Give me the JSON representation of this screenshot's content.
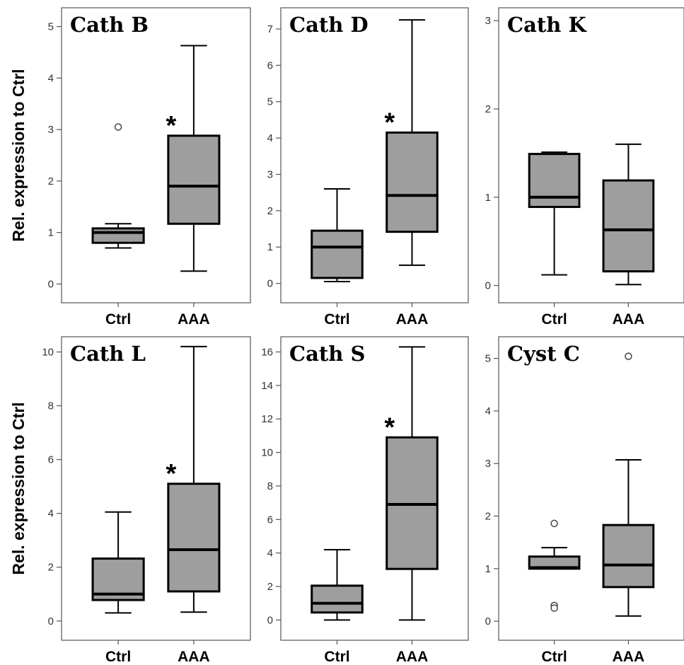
{
  "chart_data": [
    {
      "type": "box",
      "title": "Cath B",
      "ylabel": "Rel. expression to Ctrl",
      "ylim": [
        -0.2,
        5.2
      ],
      "yticks": [
        0,
        1,
        2,
        3,
        4,
        5
      ],
      "categories": [
        "Ctrl",
        "AAA"
      ],
      "boxes": [
        {
          "category": "Ctrl",
          "min": 0.7,
          "q1": 0.8,
          "median": 1.0,
          "q3": 1.08,
          "max": 1.17,
          "outliers": [
            3.05
          ]
        },
        {
          "category": "AAA",
          "min": 0.25,
          "q1": 1.17,
          "median": 1.9,
          "q3": 2.88,
          "max": 4.63,
          "outliers": [],
          "significant": true
        }
      ],
      "annotation": "*"
    },
    {
      "type": "box",
      "title": "Cath D",
      "ylabel": "",
      "ylim": [
        -0.3,
        7.35
      ],
      "yticks": [
        0,
        1,
        2,
        3,
        4,
        5,
        6,
        7
      ],
      "categories": [
        "Ctrl",
        "AAA"
      ],
      "boxes": [
        {
          "category": "Ctrl",
          "min": 0.05,
          "q1": 0.15,
          "median": 1.0,
          "q3": 1.45,
          "max": 2.6,
          "outliers": []
        },
        {
          "category": "AAA",
          "min": 0.5,
          "q1": 1.42,
          "median": 2.42,
          "q3": 4.15,
          "max": 7.25,
          "outliers": [],
          "significant": true
        }
      ],
      "annotation": "*"
    },
    {
      "type": "box",
      "title": "Cath K",
      "ylabel": "",
      "ylim": [
        -0.1,
        3.05
      ],
      "yticks": [
        0,
        1,
        2,
        3
      ],
      "categories": [
        "Ctrl",
        "AAA"
      ],
      "boxes": [
        {
          "category": "Ctrl",
          "min": 0.12,
          "q1": 0.89,
          "median": 1.0,
          "q3": 1.49,
          "max": 1.51,
          "outliers": []
        },
        {
          "category": "AAA",
          "min": 0.01,
          "q1": 0.16,
          "median": 0.63,
          "q3": 1.19,
          "max": 1.6,
          "outliers": []
        }
      ],
      "annotation": ""
    },
    {
      "type": "box",
      "title": "Cath L",
      "ylabel": "Rel. expression to Ctrl",
      "ylim": [
        -0.4,
        10.25
      ],
      "yticks": [
        0,
        2,
        4,
        6,
        8,
        10
      ],
      "categories": [
        "Ctrl",
        "AAA"
      ],
      "boxes": [
        {
          "category": "Ctrl",
          "min": 0.3,
          "q1": 0.78,
          "median": 1.0,
          "q3": 2.32,
          "max": 4.05,
          "outliers": []
        },
        {
          "category": "AAA",
          "min": 0.33,
          "q1": 1.1,
          "median": 2.65,
          "q3": 5.1,
          "max": 10.2,
          "outliers": [],
          "significant": true
        }
      ],
      "annotation": "*"
    },
    {
      "type": "box",
      "title": "Cath S",
      "ylabel": "",
      "ylim": [
        -0.7,
        16.4
      ],
      "yticks": [
        0,
        2,
        4,
        6,
        8,
        10,
        12,
        14,
        16
      ],
      "categories": [
        "Ctrl",
        "AAA"
      ],
      "boxes": [
        {
          "category": "Ctrl",
          "min": 0.0,
          "q1": 0.45,
          "median": 1.0,
          "q3": 2.05,
          "max": 4.2,
          "outliers": []
        },
        {
          "category": "AAA",
          "min": 0.0,
          "q1": 3.05,
          "median": 6.9,
          "q3": 10.9,
          "max": 16.3,
          "outliers": [],
          "significant": true
        }
      ],
      "annotation": "*"
    },
    {
      "type": "box",
      "title": "Cyst C",
      "ylabel": "",
      "ylim": [
        -0.2,
        5.25
      ],
      "yticks": [
        0,
        1,
        2,
        3,
        4,
        5
      ],
      "categories": [
        "Ctrl",
        "AAA"
      ],
      "boxes": [
        {
          "category": "Ctrl",
          "min": 1.0,
          "q1": 1.0,
          "median": 1.02,
          "q3": 1.23,
          "max": 1.4,
          "outliers": [
            1.86,
            0.3,
            0.25
          ]
        },
        {
          "category": "AAA",
          "min": 0.1,
          "q1": 0.65,
          "median": 1.07,
          "q3": 1.83,
          "max": 3.07,
          "outliers": [
            5.04
          ]
        }
      ],
      "annotation": ""
    }
  ],
  "colors": {
    "box_fill": "#9e9e9e",
    "stroke": "#000000",
    "frame": "#555555",
    "tick_text": "#333333",
    "background": "#ffffff"
  }
}
